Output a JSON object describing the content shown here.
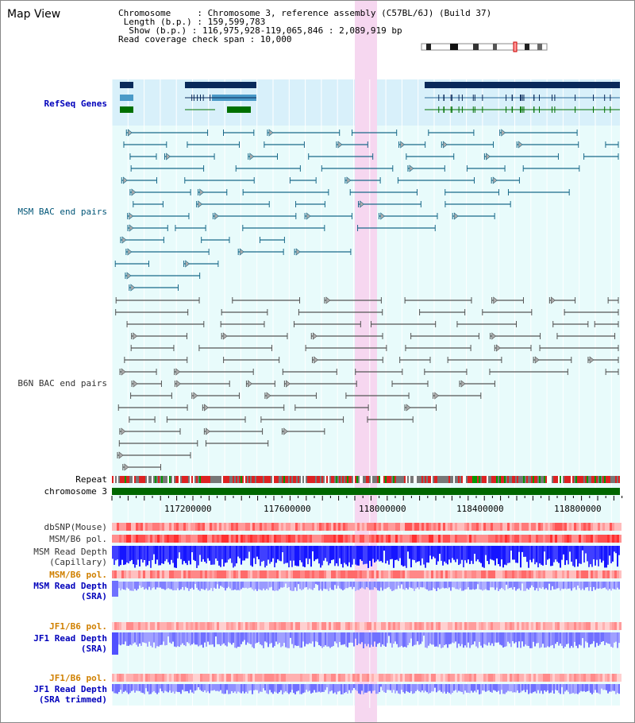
{
  "title": "Map View",
  "info": {
    "chromosome_line": "Chromosome     : Chromosome 3, reference assembly (C57BL/6J) (Build 37)",
    "length_line": " Length (b.p.) : 159,599,783",
    "show_line": "  Show (b.p.) : 116,975,928-119,065,846 : 2,089,919 bp",
    "coverage_line": "Read coverage check span : 10,000"
  },
  "tracks": {
    "refseq": "RefSeq Genes",
    "msm_bac": "MSM BAC end pairs",
    "b6n_bac": "B6N BAC end pairs",
    "repeat": "Repeat",
    "chromosome": "chromosome 3",
    "dbsnp": "dbSNP(Mouse)",
    "msm_b6_pol": "MSM/B6 pol.",
    "msm_read_depth_cap_1": "MSM Read Depth",
    "msm_read_depth_cap_2": "(Capillary)",
    "msm_b6_pol_orange": "MSM/B6 pol.",
    "msm_read_depth_sra_1": "MSM Read Depth",
    "msm_read_depth_sra_2": "(SRA)",
    "jf1_b6_pol": "JF1/B6 pol.",
    "jf1_read_depth_1": "JF1 Read Depth",
    "jf1_read_depth_2": "(SRA)",
    "jf1_b6_pol_2": "JF1/B6 pol.",
    "jf1_read_depth_trim_1": "JF1 Read Depth",
    "jf1_read_depth_trim_2": "(SRA trimmed)"
  },
  "axis_ticks": [
    "117200000",
    "117600000",
    "118000000",
    "118400000",
    "118800000"
  ],
  "colors": {
    "refseq_bg": "#d8f0fa",
    "main_bg": "#e8fbfb",
    "highlight": "#f6d7f0",
    "msm_line": "#1a6a8a",
    "b6n_line": "#555555",
    "chromosome_bar": "#006600",
    "snp": "#ff3b3b",
    "depth_blue": "#2020ff",
    "depth_light": "#7b7bff"
  }
}
